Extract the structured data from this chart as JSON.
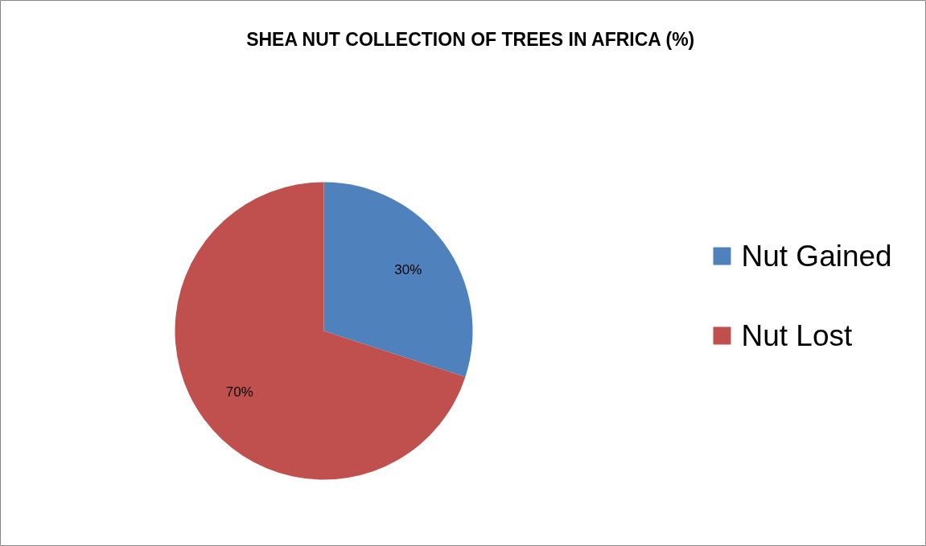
{
  "chart_data": {
    "type": "pie",
    "title": "SHEA NUT COLLECTION OF TREES IN AFRICA (%)",
    "categories": [
      "Nut Gained",
      "Nut Lost"
    ],
    "values": [
      30,
      70
    ],
    "colors": [
      "#4f81bd",
      "#c0504d"
    ],
    "value_labels": [
      "30%",
      "70%"
    ],
    "legend": "right"
  }
}
